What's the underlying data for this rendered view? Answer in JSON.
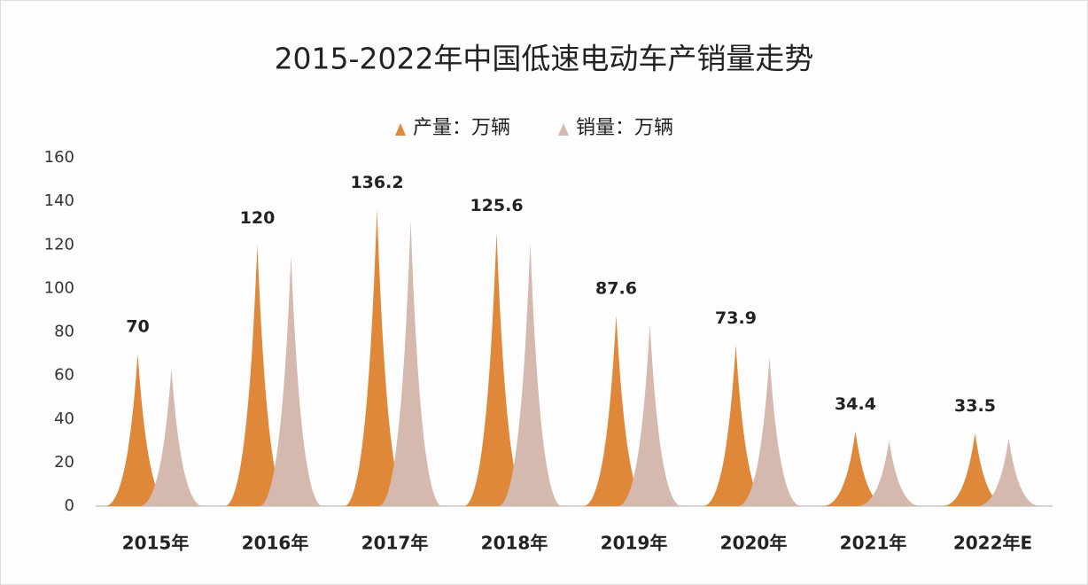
{
  "chart_data": {
    "type": "bar",
    "title": "2015-2022年中国低速电动车产销量走势",
    "categories": [
      "2015年",
      "2016年",
      "2017年",
      "2018年",
      "2019年",
      "2020年",
      "2021年",
      "2022年E"
    ],
    "series": [
      {
        "name": "产量：万辆",
        "color": "#e0883a",
        "values": [
          70,
          120,
          136.2,
          125.6,
          87.6,
          73.9,
          34.4,
          33.5
        ]
      },
      {
        "name": "销量：万辆",
        "color": "#d5b8ae",
        "values": [
          63,
          115,
          131,
          121,
          83.5,
          68.5,
          30,
          31
        ]
      }
    ],
    "ylim": [
      0,
      160
    ],
    "yticks": [
      0,
      20,
      40,
      60,
      80,
      100,
      120,
      140,
      160
    ],
    "legend": "top"
  }
}
